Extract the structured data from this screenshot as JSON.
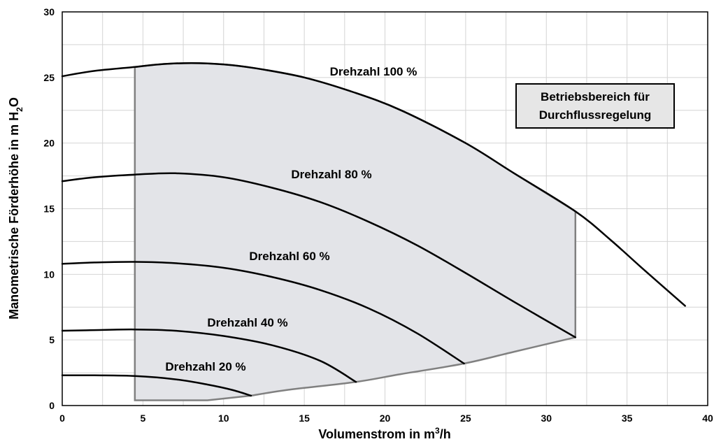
{
  "chart_data": {
    "type": "line",
    "title": "",
    "xlabel": "Volumenstrom in m³/h",
    "ylabel": "Manometrische Förderhöhe in m H2O",
    "xlim": [
      0,
      40
    ],
    "ylim": [
      0,
      30
    ],
    "xticks": [
      "0",
      "5",
      "10",
      "15",
      "20",
      "25",
      "30",
      "35",
      "40"
    ],
    "yticks": [
      "0",
      "5",
      "10",
      "15",
      "20",
      "25",
      "30"
    ],
    "grid": true,
    "legend": "none",
    "series": [
      {
        "name": "Drehzahl 100 %",
        "x": [
          0,
          2,
          4.5,
          6,
          8,
          10,
          12,
          15,
          18,
          21,
          25,
          28,
          31.8,
          34,
          36,
          38.6
        ],
        "y": [
          25.1,
          25.5,
          25.8,
          26.0,
          26.1,
          26.0,
          25.7,
          25.0,
          23.9,
          22.5,
          20.0,
          17.7,
          14.8,
          12.6,
          10.4,
          7.6
        ]
      },
      {
        "name": "Drehzahl 80 %",
        "x": [
          0,
          2,
          4.5,
          7,
          10,
          13,
          16,
          19,
          22,
          25,
          28,
          31.8
        ],
        "y": [
          17.1,
          17.4,
          17.6,
          17.7,
          17.4,
          16.6,
          15.5,
          14.0,
          12.2,
          10.1,
          7.9,
          5.2
        ]
      },
      {
        "name": "Drehzahl 60 %",
        "x": [
          0,
          2,
          4.5,
          7,
          10,
          13,
          16,
          19,
          22,
          24.9
        ],
        "y": [
          10.8,
          10.9,
          10.95,
          10.85,
          10.5,
          9.8,
          8.8,
          7.4,
          5.5,
          3.2
        ]
      },
      {
        "name": "Drehzahl 40 %",
        "x": [
          0,
          2,
          4.5,
          7,
          10,
          13,
          16,
          18.2
        ],
        "y": [
          5.7,
          5.75,
          5.8,
          5.7,
          5.3,
          4.6,
          3.4,
          1.8
        ]
      },
      {
        "name": "Drehzahl 20 %",
        "x": [
          0,
          2,
          4.5,
          7,
          9,
          10.5,
          11.7
        ],
        "y": [
          2.3,
          2.3,
          2.25,
          2.0,
          1.6,
          1.2,
          0.75
        ]
      }
    ],
    "region": {
      "name": "Betriebsbereich für Durchflussregelung",
      "x": [
        4.5,
        4.5,
        6,
        8,
        10,
        12,
        15,
        18,
        21,
        25,
        28,
        31.8,
        31.8,
        28,
        24.9,
        21,
        18.2,
        14,
        11.7,
        9,
        4.5
      ],
      "y": [
        0.4,
        25.8,
        26.0,
        26.1,
        26.0,
        25.7,
        25.0,
        23.9,
        22.5,
        20.0,
        17.7,
        14.8,
        5.2,
        4.1,
        3.2,
        2.4,
        1.8,
        1.2,
        0.75,
        0.4,
        0.4
      ]
    },
    "region_label": [
      "Betriebsbereich für",
      "Durchflussregelung"
    ]
  }
}
